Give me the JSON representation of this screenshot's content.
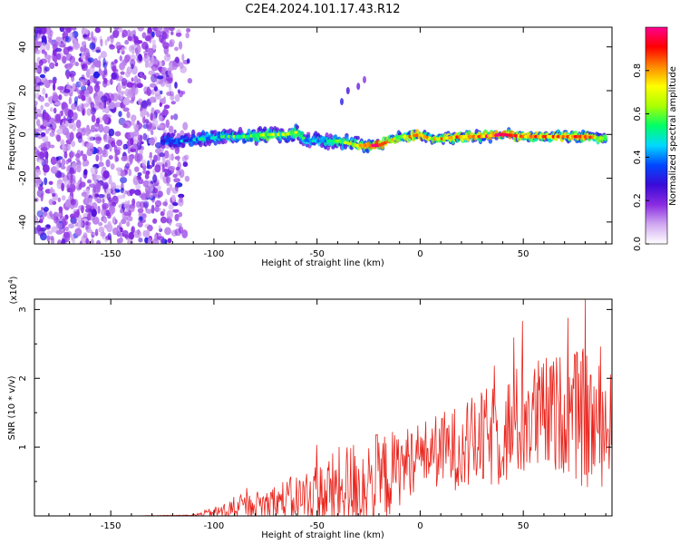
{
  "figure": {
    "title": "C2E4.2024.101.17.43.R12"
  },
  "chart_data": [
    {
      "type": "heatmap",
      "name": "spectrogram",
      "title": "",
      "xlabel": "Height of straight line (km)",
      "ylabel": "Frequency (Hz)",
      "xlim": [
        -187,
        93
      ],
      "ylim": [
        -50,
        49
      ],
      "xticks": [
        -150,
        -100,
        -50,
        0,
        50
      ],
      "yticks": [
        -40,
        -20,
        0,
        20,
        40
      ],
      "grid": false,
      "colorbar": {
        "label": "Normalized spectral amplitude",
        "range": [
          0.0,
          1.0
        ],
        "ticks": [
          0.0,
          0.2,
          0.4,
          0.6,
          0.8
        ],
        "tick_labels": [
          "0.0",
          "0.2",
          "0.4",
          "0.6",
          "0.8"
        ],
        "colormap": [
          "#ffffff",
          "#d0a8f0",
          "#8a2be2",
          "#3a0ad8",
          "#0047ff",
          "#00d9ff",
          "#00ff66",
          "#aaff00",
          "#ffff00",
          "#ff8800",
          "#ff0000",
          "#ff0090"
        ]
      },
      "noise_region": {
        "x": [
          -187,
          -110
        ],
        "y": [
          -50,
          49
        ],
        "level": 0.2
      },
      "ridge": {
        "x": [
          -125,
          -115,
          -105,
          -95,
          -85,
          -75,
          -65,
          -60,
          -55,
          -45,
          -40,
          -35,
          -30,
          -25,
          -20,
          -15,
          -10,
          -5,
          0,
          5,
          10,
          20,
          30,
          40,
          50,
          60,
          70,
          80,
          90
        ],
        "y": [
          -3,
          -3,
          -2,
          -1,
          -1,
          0,
          0,
          1,
          -3,
          -3,
          -3,
          -4,
          -5,
          -5,
          -5,
          -3,
          -1,
          -1,
          0,
          -2,
          -2,
          -1,
          -1,
          0,
          -1,
          -1,
          -1,
          -1,
          -2
        ],
        "amplitude": [
          0.35,
          0.4,
          0.45,
          0.5,
          0.55,
          0.6,
          0.6,
          0.62,
          0.45,
          0.5,
          0.55,
          0.6,
          0.75,
          0.9,
          0.95,
          0.7,
          0.65,
          0.75,
          0.85,
          0.7,
          0.75,
          0.8,
          0.85,
          0.9,
          0.8,
          0.8,
          0.8,
          0.85,
          0.6
        ]
      },
      "side_feature": {
        "x": [
          -38,
          -35,
          -30,
          -27
        ],
        "y": [
          15,
          20,
          22,
          25
        ]
      }
    },
    {
      "type": "line",
      "name": "snr",
      "title": "",
      "xlabel": "Height of straight line (km)",
      "ylabel": "SNR (10 * v/v)",
      "y_multiplier": "(x10",
      "y_multiplier_exp": "4",
      "y_multiplier_close": ")",
      "xlim": [
        -187,
        93
      ],
      "ylim": [
        0,
        3.15
      ],
      "xticks": [
        -150,
        -100,
        -50,
        0,
        50
      ],
      "yticks": [
        1,
        2,
        3
      ],
      "grid": false,
      "color": "#e8241c",
      "envelope": {
        "x": [
          -187,
          -140,
          -110,
          -100,
          -90,
          -80,
          -70,
          -60,
          -50,
          -40,
          -30,
          -20,
          -10,
          0,
          10,
          20,
          30,
          40,
          50,
          60,
          70,
          80,
          85,
          93
        ],
        "base": [
          0.0,
          0.0,
          0.01,
          0.05,
          0.1,
          0.15,
          0.2,
          0.25,
          0.3,
          0.35,
          0.45,
          0.5,
          0.7,
          0.9,
          0.95,
          1.0,
          1.1,
          1.2,
          1.4,
          1.45,
          1.5,
          1.4,
          1.3,
          1.3
        ],
        "spread": [
          0.0,
          0.0,
          0.01,
          0.1,
          0.2,
          0.25,
          0.35,
          0.45,
          0.6,
          0.8,
          0.9,
          0.9,
          0.7,
          0.6,
          0.7,
          0.8,
          0.9,
          1.0,
          1.1,
          1.1,
          1.1,
          1.3,
          1.2,
          1.0
        ]
      },
      "peak": {
        "x": 80,
        "y": 3.15
      }
    }
  ]
}
